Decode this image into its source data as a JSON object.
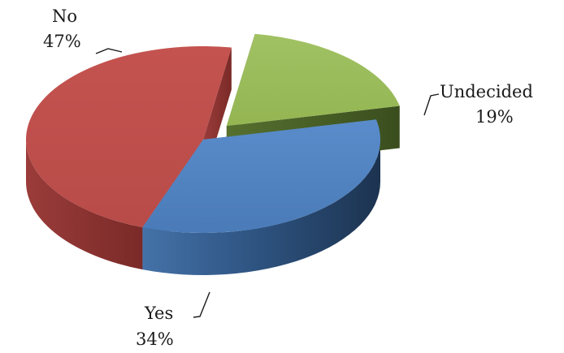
{
  "chart_data": {
    "type": "pie",
    "style": "3d-exploded",
    "title": "",
    "legend": "none",
    "categories": [
      "No",
      "Undecided",
      "Yes"
    ],
    "values": [
      47,
      19,
      34
    ],
    "value_labels": [
      "47%",
      "19%",
      "34%"
    ],
    "colors": {
      "No": "#c0504d",
      "Undecided": "#9bbb59",
      "Yes": "#4f81bd"
    },
    "exploded": [
      "Undecided"
    ]
  }
}
